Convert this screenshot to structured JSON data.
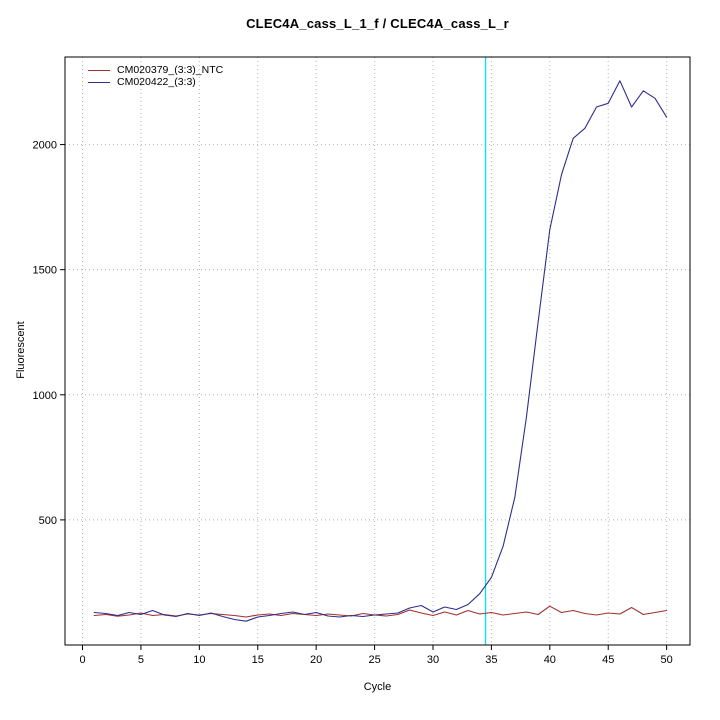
{
  "chart_data": {
    "type": "line",
    "title": "CLEC4A_cass_L_1_f / CLEC4A_cass_L_r",
    "xlabel": "Cycle",
    "ylabel": "Fluorescent",
    "x_domain": [
      -1.5,
      52
    ],
    "y_domain": [
      0,
      2350
    ],
    "xticks": [
      0,
      5,
      10,
      15,
      20,
      25,
      30,
      35,
      40,
      45,
      50
    ],
    "yticks": [
      500,
      1000,
      1500,
      2000
    ],
    "grid": true,
    "grid_color": "#b4b4b4",
    "axis_color": "#000000",
    "threshold_line": {
      "x": 34.5,
      "color": "#00e5ee"
    },
    "legend_position": "top-left",
    "x": [
      1,
      2,
      3,
      4,
      5,
      6,
      7,
      8,
      9,
      10,
      11,
      12,
      13,
      14,
      15,
      16,
      17,
      18,
      19,
      20,
      21,
      22,
      23,
      24,
      25,
      26,
      27,
      28,
      29,
      30,
      31,
      32,
      33,
      34,
      35,
      36,
      37,
      38,
      39,
      40,
      41,
      42,
      43,
      44,
      45,
      46,
      47,
      48,
      49,
      50
    ],
    "series": [
      {
        "name": "CM020379_(3:3)_NTC",
        "color": "#a03030",
        "values": [
          118,
          122,
          115,
          120,
          128,
          118,
          122,
          116,
          124,
          120,
          126,
          122,
          118,
          112,
          120,
          124,
          118,
          126,
          122,
          118,
          124,
          120,
          116,
          126,
          120,
          116,
          122,
          140,
          128,
          118,
          132,
          120,
          138,
          124,
          130,
          120,
          126,
          132,
          122,
          155,
          130,
          138,
          126,
          120,
          128,
          124,
          150,
          122,
          130,
          138
        ]
      },
      {
        "name": "CM020422_(3:3)",
        "color": "#2e2e8c",
        "values": [
          130,
          126,
          118,
          130,
          122,
          138,
          120,
          114,
          126,
          118,
          128,
          114,
          102,
          95,
          112,
          118,
          126,
          132,
          122,
          130,
          116,
          112,
          118,
          114,
          120,
          124,
          128,
          148,
          158,
          132,
          152,
          142,
          162,
          205,
          270,
          395,
          590,
          910,
          1290,
          1660,
          1880,
          2025,
          2065,
          2150,
          2165,
          2255,
          2150,
          2215,
          2185,
          2110
        ]
      }
    ]
  }
}
